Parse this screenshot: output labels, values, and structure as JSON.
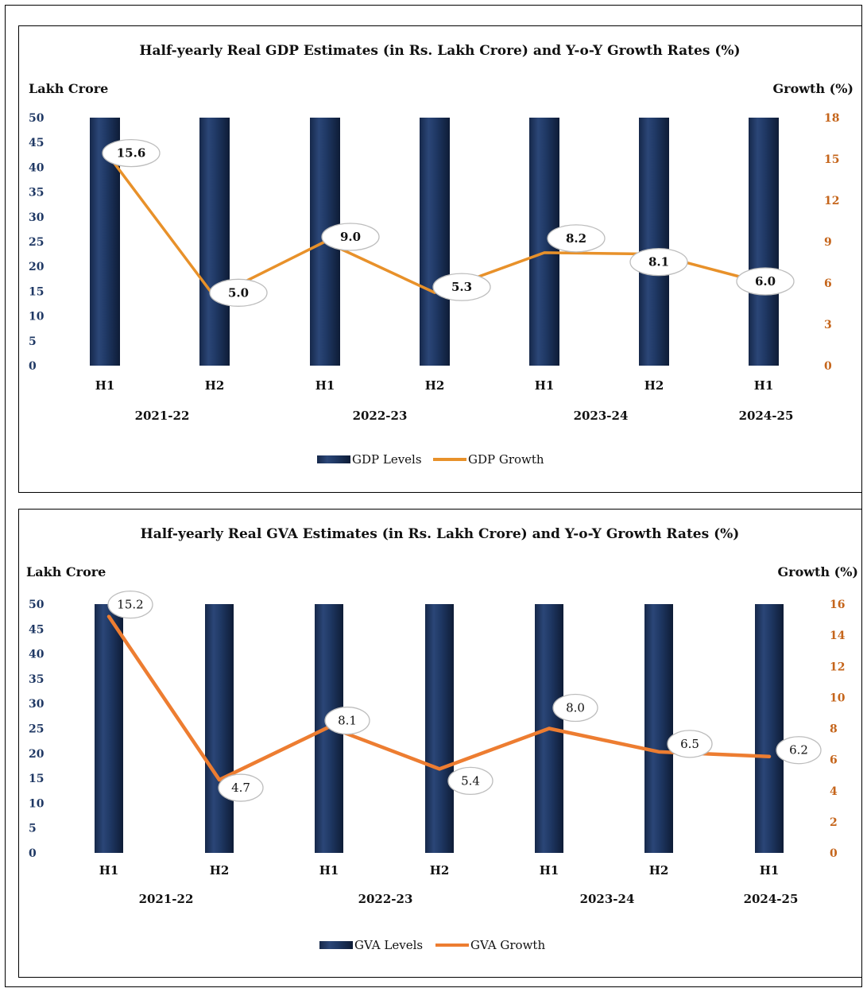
{
  "chart_data": [
    {
      "id": "gdp",
      "type": "bar+line",
      "title": "Half-yearly Real GDP Estimates (in Rs. Lakh Crore) and Y-o-Y Growth Rates (%)",
      "y_left_label": "Lakh Crore",
      "y_right_label": "Growth (%)",
      "y_left_ticks": [
        "0",
        "5",
        "10",
        "15",
        "20",
        "25",
        "30",
        "35",
        "40",
        "45",
        "50"
      ],
      "y_right_ticks": [
        "0",
        "3",
        "6",
        "9",
        "12",
        "15",
        "18"
      ],
      "ylim_left": [
        0,
        50
      ],
      "ylim_right": [
        0,
        18
      ],
      "categories": [
        "H1",
        "H2",
        "H1",
        "H2",
        "H1",
        "H2",
        "H1"
      ],
      "category_groups": [
        "2021-22",
        "2022-23",
        "2023-24",
        "2024-25"
      ],
      "series": [
        {
          "name": "GDP Levels",
          "type": "bar",
          "values": [
            50,
            50,
            50,
            50,
            50,
            50,
            50
          ]
        },
        {
          "name": "GDP Growth",
          "type": "line",
          "values": [
            15.6,
            5.0,
            9.0,
            5.3,
            8.2,
            8.1,
            6.0
          ]
        }
      ],
      "data_labels": [
        "15.6",
        "5.0",
        "9.0",
        "5.3",
        "8.2",
        "8.1",
        "6.0"
      ],
      "legend_position": "bottom",
      "colors": {
        "bar": "#1f3864",
        "line": "#e8912a",
        "right_axis": "#c5651b",
        "left_axis": "#1f3864"
      }
    },
    {
      "id": "gva",
      "type": "bar+line",
      "title": "Half-yearly Real GVA Estimates (in Rs. Lakh Crore) and Y-o-Y Growth Rates (%)",
      "y_left_label": "Lakh Crore",
      "y_right_label": "Growth (%)",
      "y_left_ticks": [
        "0",
        "5",
        "10",
        "15",
        "20",
        "25",
        "30",
        "35",
        "40",
        "45",
        "50"
      ],
      "y_right_ticks": [
        "0",
        "2",
        "4",
        "6",
        "8",
        "10",
        "12",
        "14",
        "16"
      ],
      "ylim_left": [
        0,
        50
      ],
      "ylim_right": [
        0,
        16
      ],
      "categories": [
        "H1",
        "H2",
        "H1",
        "H2",
        "H1",
        "H2",
        "H1"
      ],
      "category_groups": [
        "2021-22",
        "2022-23",
        "2023-24",
        "2024-25"
      ],
      "series": [
        {
          "name": "GVA Levels",
          "type": "bar",
          "values": [
            50,
            50,
            50,
            50,
            50,
            50,
            50
          ]
        },
        {
          "name": "GVA Growth",
          "type": "line",
          "values": [
            15.2,
            4.7,
            8.1,
            5.4,
            8.0,
            6.5,
            6.2
          ]
        }
      ],
      "data_labels": [
        "15.2",
        "4.7",
        "8.1",
        "5.4",
        "8.0",
        "6.5",
        "6.2"
      ],
      "legend_position": "bottom",
      "colors": {
        "bar": "#1f3864",
        "line": "#ed7d31",
        "right_axis": "#c5651b",
        "left_axis": "#1f3864"
      }
    }
  ]
}
